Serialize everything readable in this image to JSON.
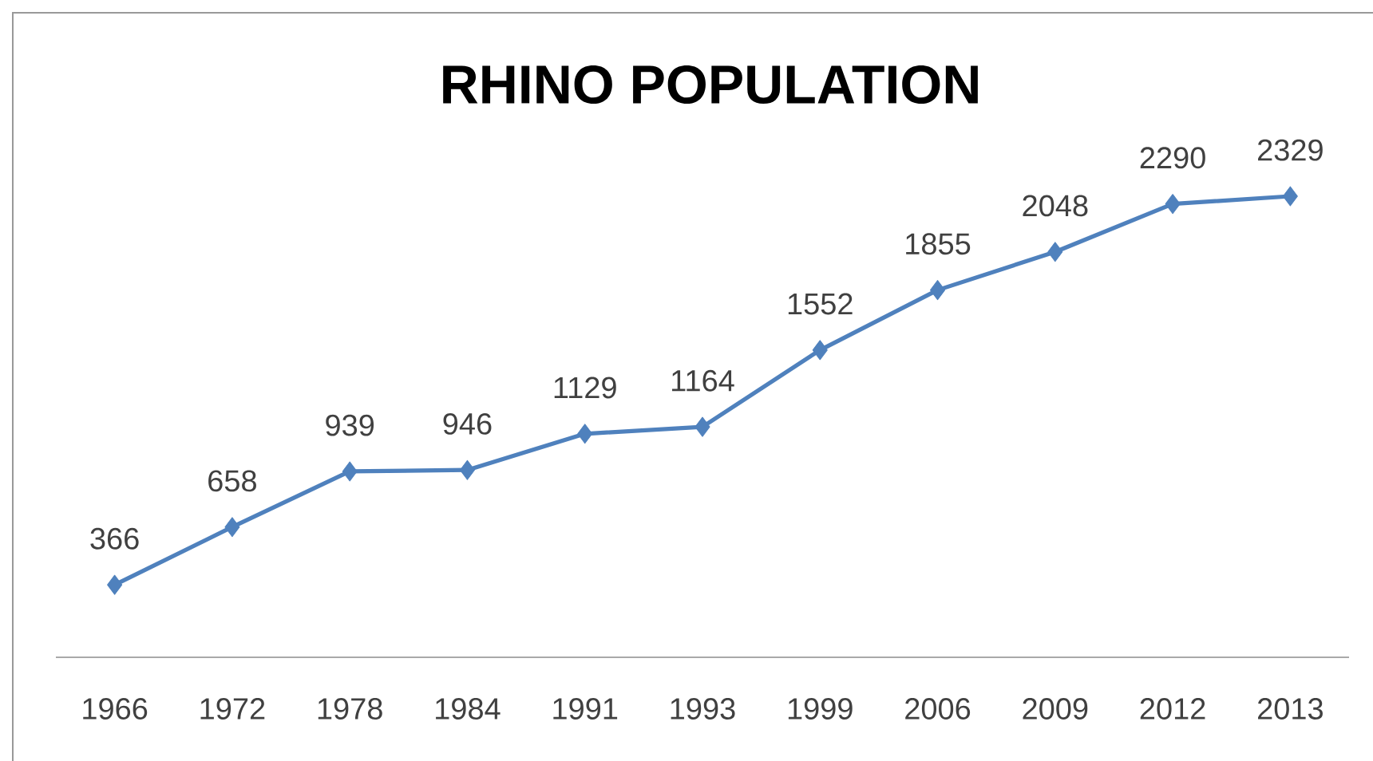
{
  "chart_data": {
    "type": "line",
    "title": "RHINO POPULATION",
    "categories": [
      "1966",
      "1972",
      "1978",
      "1984",
      "1991",
      "1993",
      "1999",
      "2006",
      "2009",
      "2012",
      "2013"
    ],
    "values": [
      366,
      658,
      939,
      946,
      1129,
      1164,
      1552,
      1855,
      2048,
      2290,
      2329
    ],
    "color": "#4f81bd",
    "marker": "diamond",
    "data_labels": true,
    "tick_labels": "x"
  }
}
